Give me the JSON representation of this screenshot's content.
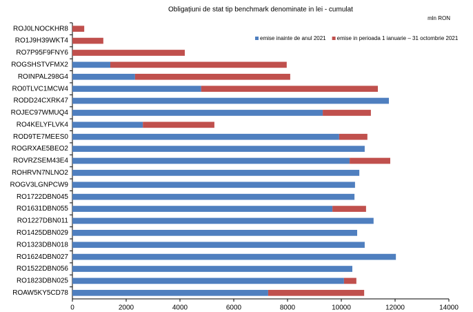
{
  "chart_data": {
    "type": "stacked_bar_horizontal",
    "title": "Obligațiuni de stat tip benchmark denominate in lei  - cumulat",
    "unit": "mln RON",
    "categories": [
      "ROJ0LNOCKHR8",
      "RO1J9H39WKT4",
      "RO7P95F9FNY6",
      "ROGSHSTVFMX2",
      "ROINPAL298G4",
      "RO0TLVC1MCW4",
      "RODD24CXRK47",
      "ROJEC97WMUQ4",
      "RO4KELYFLVK4",
      "ROD9TE7MEES0",
      "ROGRXAE5BEO2",
      "ROVRZSEM43E4",
      "ROHRVN7NLNO2",
      "ROGV3LGNPCW9",
      "RO1722DBN045",
      "RO1631DBN055",
      "RO1227DBN011",
      "RO1425DBN029",
      "RO1323DBN018",
      "RO1624DBN027",
      "RO1522DBN056",
      "RO1823DBN025",
      "ROAW5KY5CD78"
    ],
    "series": [
      {
        "name": "emise inainte de anul 2021",
        "color": "#4f7fbf",
        "values": [
          0,
          0,
          0,
          1410,
          2330,
          4790,
          11770,
          9310,
          2620,
          9920,
          10870,
          10310,
          10670,
          10510,
          10490,
          9670,
          11200,
          10590,
          10870,
          12030,
          10410,
          10100,
          7280
        ]
      },
      {
        "name": "emise in perioada 1 ianuarie – 31 octombrie 2021",
        "color": "#c0504d",
        "values": [
          440,
          1150,
          4180,
          6560,
          5770,
          6570,
          0,
          1790,
          2660,
          1050,
          0,
          1510,
          0,
          0,
          0,
          1250,
          0,
          0,
          0,
          0,
          0,
          460,
          3570
        ]
      }
    ],
    "xlim": [
      0,
      14000
    ],
    "xticks": [
      0,
      2000,
      4000,
      6000,
      8000,
      10000,
      12000,
      14000
    ],
    "legend": "top-right"
  }
}
